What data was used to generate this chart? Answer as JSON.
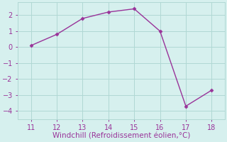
{
  "x": [
    11,
    12,
    13,
    14,
    15,
    16,
    17,
    18
  ],
  "y": [
    0.1,
    0.8,
    1.8,
    2.2,
    2.4,
    1.0,
    -3.7,
    -2.7
  ],
  "line_color": "#993399",
  "marker": "D",
  "marker_size": 2.5,
  "linewidth": 1.0,
  "xlabel": "Windchill (Refroidissement éolien,°C)",
  "xlabel_fontsize": 7.5,
  "background_color": "#d6f0ee",
  "grid_color": "#b0d8d4",
  "tick_color": "#993399",
  "label_color": "#993399",
  "xlim": [
    10.5,
    18.5
  ],
  "ylim": [
    -4.5,
    2.8
  ],
  "xticks": [
    11,
    12,
    13,
    14,
    15,
    16,
    17,
    18
  ],
  "yticks": [
    -4,
    -3,
    -2,
    -1,
    0,
    1,
    2
  ],
  "tick_fontsize": 7.0
}
